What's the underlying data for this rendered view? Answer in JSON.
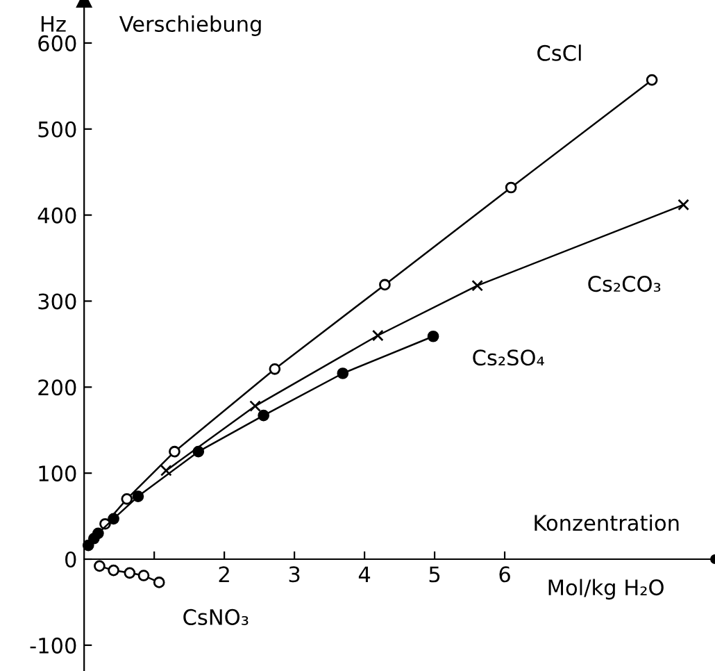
{
  "chart_data": {
    "type": "line",
    "title": "Verschiebung",
    "ylabel": "Hz",
    "xlabel": "Konzentration",
    "annotations": [
      "Mol/kg H₂O"
    ],
    "xlim": [
      -1.2,
      9.0
    ],
    "ylim": [
      -130,
      650
    ],
    "xticks": [
      {
        "value": 1,
        "label": null
      },
      2,
      3,
      4,
      5,
      6
    ],
    "yticks": [
      -100,
      0,
      100,
      200,
      300,
      400,
      500,
      600
    ],
    "grid": false,
    "line_style": "solid",
    "series": [
      {
        "name": "CsCl",
        "color": "#000000",
        "marker": "circle",
        "x": [
          0.3,
          0.61,
          1.29,
          2.72,
          4.29,
          6.09,
          8.1
        ],
        "values": [
          41,
          70,
          125,
          221,
          319,
          432,
          557
        ]
      },
      {
        "name": "Cs₂CO₃",
        "color": "#000000",
        "marker": "cross",
        "x": [
          1.17,
          2.44,
          4.19,
          5.61,
          8.55
        ],
        "values": [
          103,
          178,
          260,
          318,
          412
        ]
      },
      {
        "name": "Cs₂SO₄",
        "color": "#000000",
        "marker": "circle",
        "x": [
          0.06,
          0.14,
          0.2,
          0.42,
          0.77,
          1.63,
          2.56,
          3.69,
          4.98
        ],
        "values": [
          16,
          24,
          30,
          47,
          73,
          125,
          167,
          216,
          259
        ]
      },
      {
        "name": "CsNO₃",
        "color": "#000000",
        "marker": "circle",
        "x": [
          0.22,
          0.42,
          0.65,
          0.85,
          1.07
        ],
        "values": [
          -8,
          -13,
          -16,
          -19,
          -27
        ]
      }
    ]
  }
}
